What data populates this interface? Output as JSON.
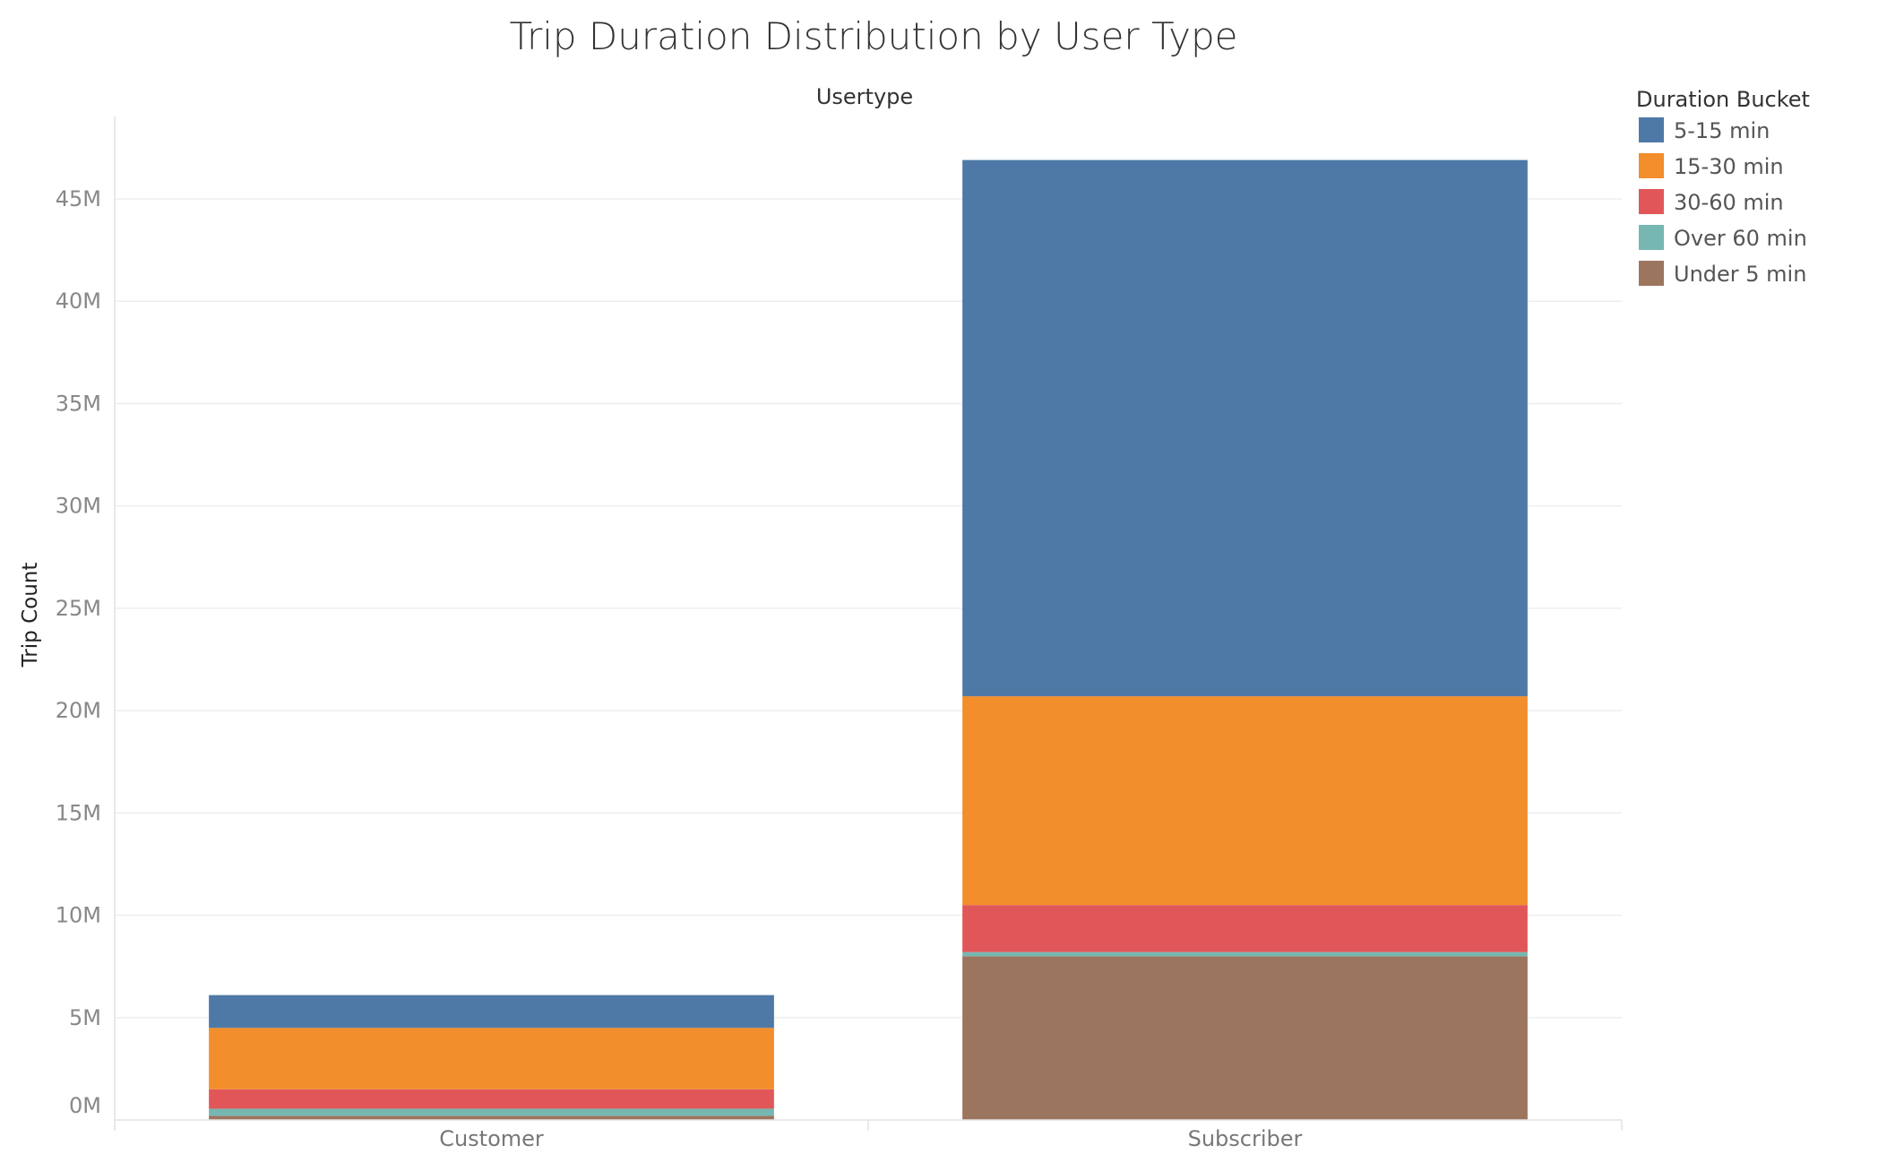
{
  "chart_data": {
    "type": "bar",
    "stacked": true,
    "title": "Trip Duration Distribution by User Type",
    "facet_header": "Usertype",
    "xlabel": "",
    "ylabel": "Trip Count",
    "ylim": [
      0,
      48000000
    ],
    "y_ticks": [
      0,
      5000000,
      10000000,
      15000000,
      20000000,
      25000000,
      30000000,
      35000000,
      40000000,
      45000000
    ],
    "y_tick_labels": [
      "0M",
      "5M",
      "10M",
      "15M",
      "20M",
      "25M",
      "30M",
      "35M",
      "40M",
      "45M"
    ],
    "grid": true,
    "categories": [
      "Customer",
      "Subscriber"
    ],
    "legend": {
      "title": "Duration Bucket",
      "position": "right",
      "entries": [
        {
          "name": "5-15 min",
          "color": "#4E79A7"
        },
        {
          "name": "15-30 min",
          "color": "#F28E2B"
        },
        {
          "name": "30-60 min",
          "color": "#E15759"
        },
        {
          "name": "Over 60 min",
          "color": "#76B7B2"
        },
        {
          "name": "Under 5 min",
          "color": "#9C755F"
        }
      ]
    },
    "stack_order": [
      "Under 5 min",
      "Over 60 min",
      "30-60 min",
      "15-30 min",
      "5-15 min"
    ],
    "series": [
      {
        "name": "Under 5 min",
        "color": "#9C755F",
        "values": [
          200000,
          8000000
        ]
      },
      {
        "name": "Over 60 min",
        "color": "#76B7B2",
        "values": [
          350000,
          200000
        ]
      },
      {
        "name": "30-60 min",
        "color": "#E15759",
        "values": [
          950000,
          2300000
        ]
      },
      {
        "name": "15-30 min",
        "color": "#F28E2B",
        "values": [
          3000000,
          10200000
        ]
      },
      {
        "name": "5-15 min",
        "color": "#4E79A7",
        "values": [
          1600000,
          26200000
        ]
      }
    ]
  }
}
